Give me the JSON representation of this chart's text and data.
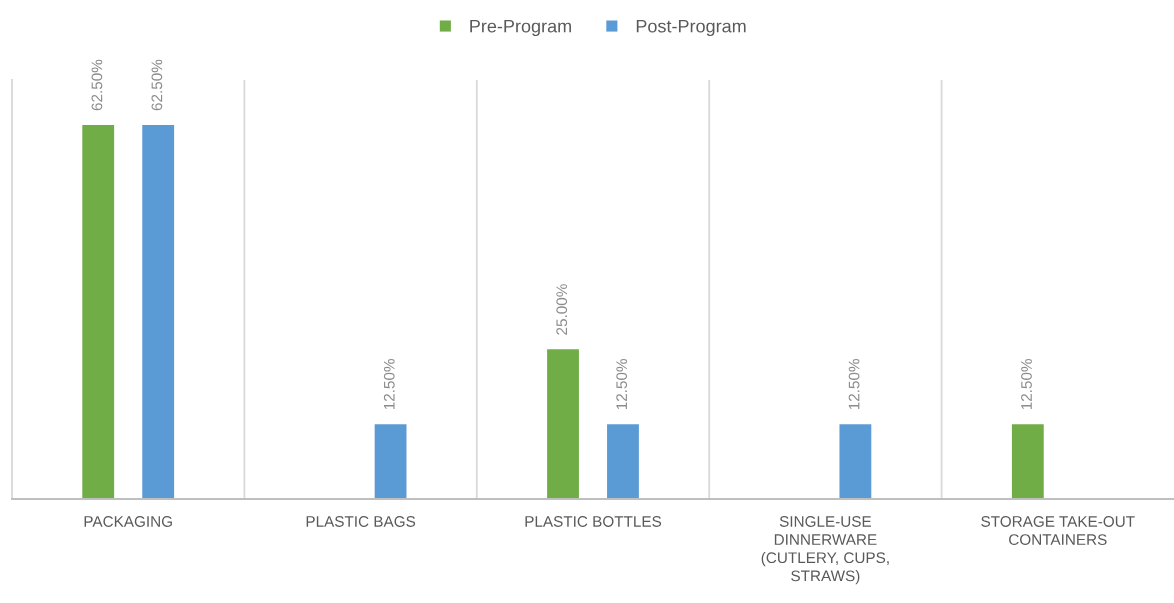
{
  "chart_data": {
    "type": "bar",
    "categories": [
      "PACKAGING",
      "PLASTIC BAGS",
      "PLASTIC BOTTLES",
      "SINGLE-USE DINNERWARE (CUTLERY, CUPS, STRAWS)",
      "STORAGE TAKE-OUT CONTAINERS"
    ],
    "series": [
      {
        "name": "Pre-Program",
        "color": "#70ad47",
        "values": [
          62.5,
          null,
          25,
          null,
          12.5
        ],
        "value_labels": [
          "62.50%",
          null,
          "25.00%",
          null,
          "12.50%"
        ]
      },
      {
        "name": "Post-Program",
        "color": "#5b9bd5",
        "values": [
          62.5,
          12.5,
          12.5,
          12.5,
          null
        ],
        "value_labels": [
          "62.50%",
          "12.50%",
          "12.50%",
          "12.50%",
          null
        ]
      }
    ],
    "legend": "top",
    "grid": "x",
    "tick_labels": "x"
  }
}
